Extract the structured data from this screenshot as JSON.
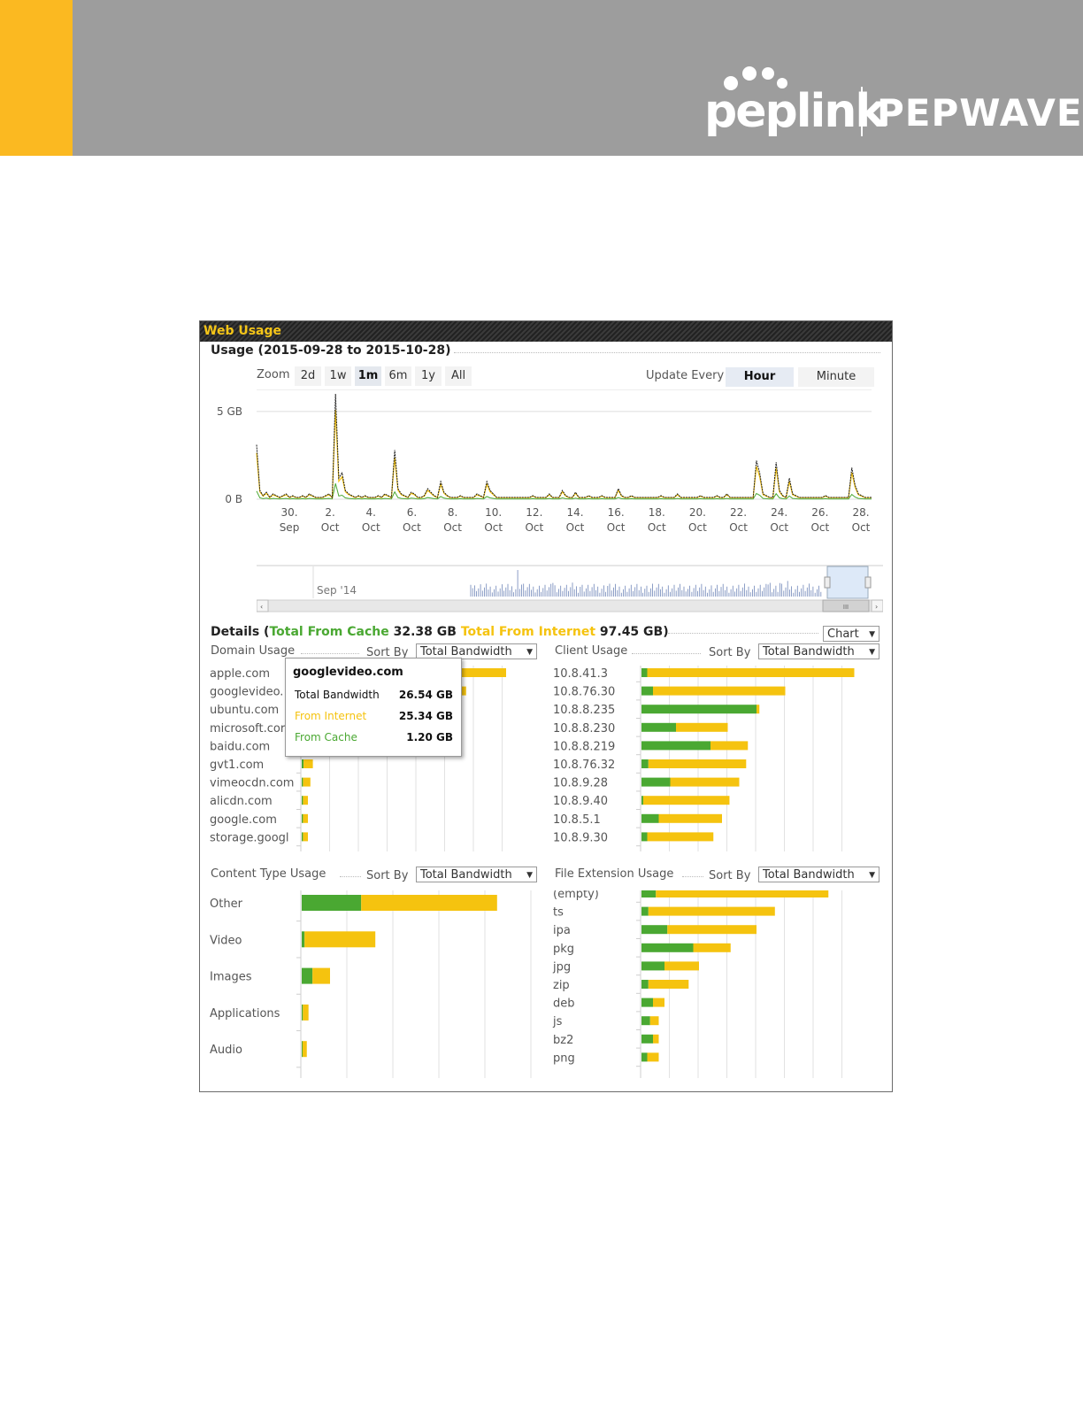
{
  "header": {
    "brand_left": "peplink",
    "brand_right": "PEPWAVE",
    "colors": {
      "banner": "#9d9d9d",
      "accent": "#fbb921"
    }
  },
  "panel": {
    "title": "Web Usage"
  },
  "usage": {
    "title": "Usage (2015-09-28 to 2015-10-28)",
    "zoom_label": "Zoom",
    "zoom_options": [
      "2d",
      "1w",
      "1m",
      "6m",
      "1y",
      "All"
    ],
    "zoom_selected": "1m",
    "update_label": "Update Every",
    "update_options": [
      "Hour",
      "Minute"
    ],
    "update_selected": "Hour"
  },
  "navigator": {
    "label": "Sep '14",
    "scroll_grip": "III"
  },
  "details": {
    "prefix": "Details (",
    "cache_label": "Total From Cache",
    "cache_value": "32.38 GB",
    "internet_label": "Total From Internet",
    "internet_value": "97.45 GB)",
    "view_select": "Chart",
    "sort_by_label": "Sort By",
    "sort_value": "Total Bandwidth"
  },
  "colors": {
    "cache": "#4aa832",
    "internet": "#f5c30f",
    "line_dark": "#1a1a1a",
    "grid": "#dddddd"
  },
  "tooltip": {
    "title": "googlevideo.com",
    "total_label": "Total Bandwidth",
    "total_value": "26.54 GB",
    "internet_label": "From Internet",
    "internet_value": "25.34 GB",
    "cache_label": "From Cache",
    "cache_value": "1.20 GB"
  },
  "chart_data": [
    {
      "type": "line",
      "title": "Usage (2015-09-28 to 2015-10-28)",
      "ylim": [
        0,
        6
      ],
      "y_tick_labels": [
        "0 B",
        "5 GB"
      ],
      "y_tick_values": [
        0,
        5
      ],
      "x_tick_labels": [
        [
          "30.",
          "Sep"
        ],
        [
          "2.",
          "Oct"
        ],
        [
          "4.",
          "Oct"
        ],
        [
          "6.",
          "Oct"
        ],
        [
          "8.",
          "Oct"
        ],
        [
          "10.",
          "Oct"
        ],
        [
          "12.",
          "Oct"
        ],
        [
          "14.",
          "Oct"
        ],
        [
          "16.",
          "Oct"
        ],
        [
          "18.",
          "Oct"
        ],
        [
          "20.",
          "Oct"
        ],
        [
          "22.",
          "Oct"
        ],
        [
          "24.",
          "Oct"
        ],
        [
          "26.",
          "Oct"
        ],
        [
          "28.",
          "Oct"
        ]
      ],
      "series": [
        {
          "values": [
            3.1,
            0.5,
            0.2,
            0.4,
            0.1,
            0.3,
            0.2,
            0.1,
            0.2,
            0.3,
            0.1,
            0.2,
            0.1,
            0.1,
            0.2,
            0.1,
            0.3,
            0.2,
            0.1,
            0.1,
            0.1,
            0.2,
            0.3,
            0.1,
            6.0,
            1.2,
            1.5,
            0.5,
            0.3,
            0.2,
            0.1,
            0.2,
            0.1,
            0.2,
            0.1,
            0.1,
            0.1,
            0.2,
            0.1,
            0.3,
            0.2,
            0.1,
            2.8,
            0.6,
            0.3,
            0.2,
            0.1,
            0.4,
            0.3,
            0.1,
            0.1,
            0.2,
            0.6,
            0.4,
            0.2,
            0.1,
            1.0,
            0.4,
            0.2,
            0.1,
            0.1,
            0.1,
            0.2,
            0.1,
            0.1,
            0.1,
            0.1,
            0.3,
            0.2,
            0.1,
            1.0,
            0.5,
            0.3,
            0.1,
            0.1,
            0.1,
            0.1,
            0.1,
            0.1,
            0.1,
            0.1,
            0.1,
            0.1,
            0.1,
            0.2,
            0.1,
            0.1,
            0.1,
            0.1,
            0.3,
            0.1,
            0.1,
            0.1,
            0.5,
            0.2,
            0.1,
            0.1,
            0.4,
            0.1,
            0.1,
            0.1,
            0.2,
            0.1,
            0.1,
            0.1,
            0.2,
            0.1,
            0.1,
            0.1,
            0.1,
            0.6,
            0.2,
            0.1,
            0.1,
            0.2,
            0.1,
            0.1,
            0.1,
            0.1,
            0.1,
            0.1,
            0.1,
            0.1,
            0.2,
            0.1,
            0.1,
            0.1,
            0.1,
            0.3,
            0.1,
            0.1,
            0.1,
            0.1,
            0.1,
            0.1,
            0.2,
            0.1,
            0.1,
            0.1,
            0.1,
            0.2,
            0.1,
            0.1,
            0.3,
            0.1,
            0.1,
            0.1,
            0.1,
            0.1,
            0.1,
            0.1,
            0.1,
            2.2,
            1.5,
            0.3,
            0.2,
            0.1,
            0.1,
            2.1,
            0.5,
            0.2,
            0.1,
            1.2,
            0.3,
            0.2,
            0.1,
            0.1,
            0.1,
            0.1,
            0.1,
            0.1,
            0.1,
            0.1,
            0.2,
            0.1,
            0.1,
            0.1,
            0.1,
            0.1,
            0.1,
            0.1,
            1.8,
            0.8,
            0.3,
            0.2,
            0.1,
            0.1,
            0.1
          ]
        }
      ]
    },
    {
      "type": "bar",
      "title": "Domain Usage",
      "stacked": true,
      "categories": [
        "apple.com",
        "googlevideo.",
        "ubuntu.com",
        "microsoft.cor",
        "baidu.com",
        "gvt1.com",
        "vimeocdn.com",
        "alicdn.com",
        "google.com",
        "storage.googl"
      ],
      "series": [
        {
          "values": [
            4.0,
            1.2,
            1.0,
            0.8,
            0.6,
            0.3,
            0.2,
            0.2,
            0.2,
            0.2
          ]
        },
        {
          "values": [
            29.0,
            25.34,
            17.0,
            14.0,
            10.0,
            1.5,
            1.2,
            0.8,
            0.8,
            0.8
          ]
        }
      ]
    },
    {
      "type": "bar",
      "title": "Client Usage",
      "stacked": true,
      "categories": [
        "10.8.41.3",
        "10.8.76.30",
        "10.8.8.235",
        "10.8.8.230",
        "10.8.8.219",
        "10.8.76.32",
        "10.8.9.28",
        "10.8.9.40",
        "10.8.5.1",
        "10.8.9.30"
      ],
      "series": [
        {
          "values": [
            1.0,
            2.0,
            20.0,
            6.0,
            12.0,
            1.2,
            5.0,
            0.3,
            3.0,
            1.0
          ]
        },
        {
          "values": [
            36.0,
            23.0,
            0.5,
            9.0,
            6.5,
            17.0,
            12.0,
            15.0,
            11.0,
            11.5
          ]
        }
      ]
    },
    {
      "type": "bar",
      "title": "Content Type Usage",
      "stacked": true,
      "categories": [
        "Other",
        "Video",
        "Images",
        "Applications",
        "Audio"
      ],
      "series": [
        {
          "values": [
            21.0,
            1.0,
            3.8,
            0.4,
            0.3
          ]
        },
        {
          "values": [
            48.0,
            25.0,
            6.2,
            2.0,
            1.5
          ]
        }
      ]
    },
    {
      "type": "bar",
      "title": "File Extension Usage",
      "stacked": true,
      "categories": [
        "(empty)",
        "ts",
        "ipa",
        "pkg",
        "jpg",
        "zip",
        "deb",
        "js",
        "bz2",
        "png"
      ],
      "series": [
        {
          "values": [
            2.5,
            1.2,
            4.5,
            9.0,
            4.0,
            1.2,
            2.0,
            1.5,
            2.0,
            1.0
          ]
        },
        {
          "values": [
            30.0,
            22.0,
            15.5,
            6.5,
            6.0,
            7.0,
            2.0,
            1.5,
            1.0,
            2.0
          ]
        }
      ]
    }
  ]
}
